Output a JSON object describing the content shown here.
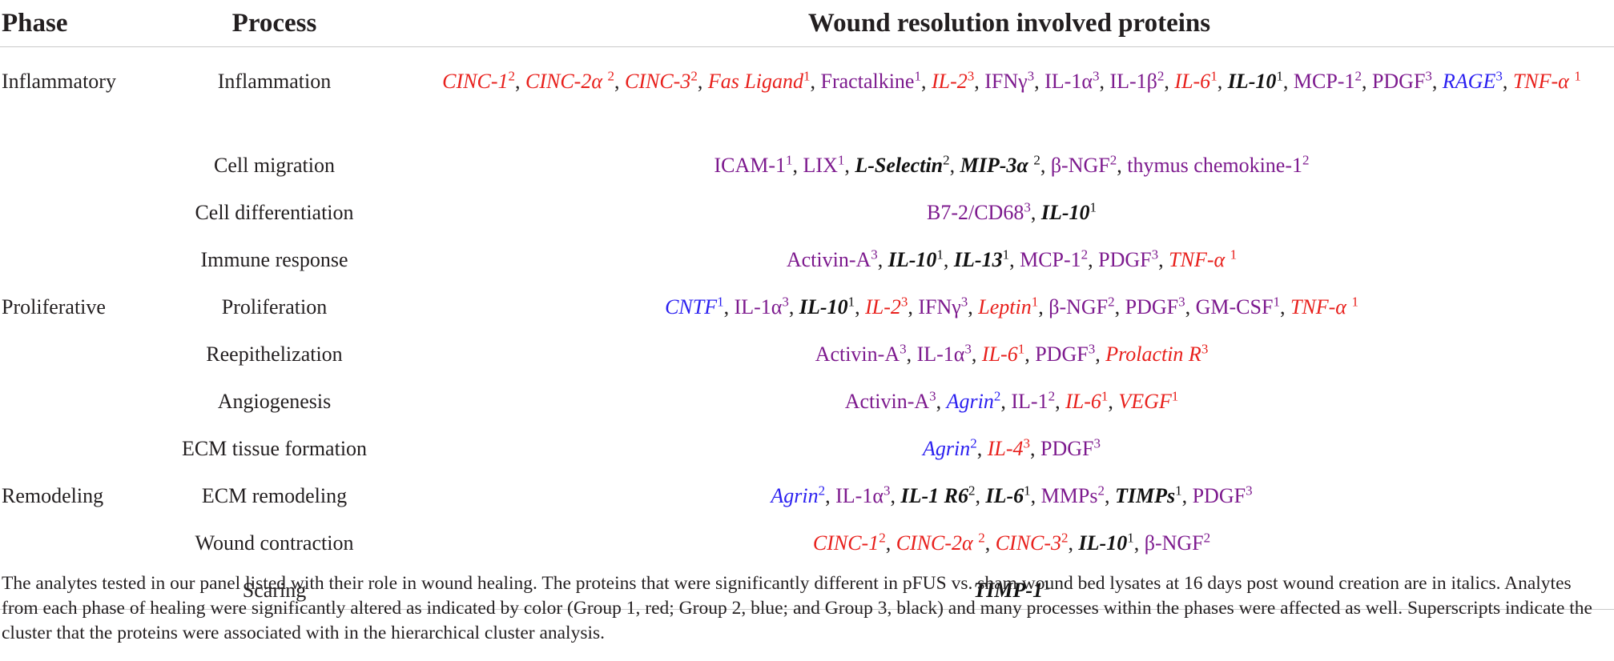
{
  "colors": {
    "group1": "#e8201c",
    "group2": "#2a1ff0",
    "group3": "#111111",
    "mixed": "#7d1a8e",
    "text": "#231f20"
  },
  "headers": {
    "phase": "Phase",
    "process": "Process",
    "proteins": "Wound resolution involved proteins"
  },
  "rows": [
    {
      "phase": "Inflammatory",
      "process": "Inflammation",
      "items": [
        {
          "t": "CINC-1",
          "s": "2",
          "c": "group1",
          "i": true
        },
        {
          "t": "CINC-2α ",
          "s": "2",
          "c": "group1",
          "i": true
        },
        {
          "t": "CINC-3",
          "s": "2",
          "c": "group1",
          "i": true
        },
        {
          "t": "Fas Ligand",
          "s": "1",
          "c": "group1",
          "i": true
        },
        {
          "t": "Fractalkine",
          "s": "1",
          "c": "mixed"
        },
        {
          "t": "IL-2",
          "s": "3",
          "c": "group1",
          "i": true
        },
        {
          "t": "IFNγ",
          "s": "3",
          "c": "mixed"
        },
        {
          "t": "IL-1α",
          "s": "3",
          "c": "mixed"
        },
        {
          "t": "IL-1β",
          "s": "2",
          "c": "mixed"
        },
        {
          "t": "IL-6",
          "s": "1",
          "c": "group1",
          "i": true
        },
        {
          "t": "IL-10",
          "s": "1",
          "c": "group3",
          "i": true,
          "b": true
        },
        {
          "t": "MCP-1",
          "s": "2",
          "c": "mixed"
        },
        {
          "t": "PDGF",
          "s": "3",
          "c": "mixed"
        },
        {
          "t": "RAGE",
          "s": "3",
          "c": "group2",
          "i": true
        },
        {
          "t": "TNF-α ",
          "s": "1",
          "c": "group1",
          "i": true
        }
      ]
    },
    {
      "phase": "",
      "process": "Cell migration",
      "items": [
        {
          "t": "ICAM-1",
          "s": "1",
          "c": "mixed"
        },
        {
          "t": "LIX",
          "s": "1",
          "c": "mixed"
        },
        {
          "t": "L-Selectin",
          "s": "2",
          "c": "group3",
          "i": true,
          "b": true
        },
        {
          "t": "MIP-3α ",
          "s": "2",
          "c": "group3",
          "i": true,
          "b": true
        },
        {
          "t": "β-NGF",
          "s": "2",
          "c": "mixed"
        },
        {
          "t": "thymus chemokine-1",
          "s": "2",
          "c": "mixed"
        }
      ]
    },
    {
      "phase": "",
      "process": "Cell differentiation",
      "items": [
        {
          "t": "B7-2/CD68",
          "s": "3",
          "c": "mixed"
        },
        {
          "t": "IL-10",
          "s": "1",
          "c": "group3",
          "i": true,
          "b": true
        }
      ]
    },
    {
      "phase": "",
      "process": "Immune response",
      "items": [
        {
          "t": "Activin-A",
          "s": "3",
          "c": "mixed"
        },
        {
          "t": "IL-10",
          "s": "1",
          "c": "group3",
          "i": true,
          "b": true
        },
        {
          "t": "IL-13",
          "s": "1",
          "c": "group3",
          "i": true,
          "b": true
        },
        {
          "t": "MCP-1",
          "s": "2",
          "c": "mixed"
        },
        {
          "t": "PDGF",
          "s": "3",
          "c": "mixed"
        },
        {
          "t": "TNF-α ",
          "s": "1",
          "c": "group1",
          "i": true
        }
      ]
    },
    {
      "phase": "Proliferative",
      "process": "Proliferation",
      "items": [
        {
          "t": "CNTF",
          "s": "1",
          "c": "group2",
          "i": true
        },
        {
          "t": "IL-1α",
          "s": "3",
          "c": "mixed"
        },
        {
          "t": "IL-10",
          "s": "1",
          "c": "group3",
          "i": true,
          "b": true
        },
        {
          "t": "IL-2",
          "s": "3",
          "c": "group1",
          "i": true
        },
        {
          "t": "IFNγ",
          "s": "3",
          "c": "mixed"
        },
        {
          "t": "Leptin",
          "s": "1",
          "c": "group1",
          "i": true
        },
        {
          "t": "β-NGF",
          "s": "2",
          "c": "mixed"
        },
        {
          "t": "PDGF",
          "s": "3",
          "c": "mixed"
        },
        {
          "t": "GM-CSF",
          "s": "1",
          "c": "mixed"
        },
        {
          "t": "TNF-α ",
          "s": "1",
          "c": "group1",
          "i": true
        }
      ]
    },
    {
      "phase": "",
      "process": "Reepithelization",
      "items": [
        {
          "t": "Activin-A",
          "s": "3",
          "c": "mixed"
        },
        {
          "t": "IL-1α",
          "s": "3",
          "c": "mixed"
        },
        {
          "t": "IL-6",
          "s": "1",
          "c": "group1",
          "i": true
        },
        {
          "t": "PDGF",
          "s": "3",
          "c": "mixed"
        },
        {
          "t": "Prolactin R",
          "s": "3",
          "c": "group1",
          "i": true
        }
      ]
    },
    {
      "phase": "",
      "process": "Angiogenesis",
      "items": [
        {
          "t": "Activin-A",
          "s": "3",
          "c": "mixed"
        },
        {
          "t": "Agrin",
          "s": "2",
          "c": "group2",
          "i": true
        },
        {
          "t": "IL-1",
          "s": "2",
          "c": "mixed"
        },
        {
          "t": "IL-6",
          "s": "1",
          "c": "group1",
          "i": true
        },
        {
          "t": "VEGF",
          "s": "1",
          "c": "group1",
          "i": true
        }
      ]
    },
    {
      "phase": "",
      "process": "ECM tissue formation",
      "items": [
        {
          "t": "Agrin",
          "s": "2",
          "c": "group2",
          "i": true
        },
        {
          "t": "IL-4",
          "s": "3",
          "c": "group1",
          "i": true
        },
        {
          "t": "PDGF",
          "s": "3",
          "c": "mixed"
        }
      ]
    },
    {
      "phase": "Remodeling",
      "process": "ECM remodeling",
      "items": [
        {
          "t": "Agrin",
          "s": "2",
          "c": "group2",
          "i": true
        },
        {
          "t": "IL-1α",
          "s": "3",
          "c": "mixed"
        },
        {
          "t": "IL-1 R6",
          "s": "2",
          "c": "group3",
          "i": true,
          "b": true
        },
        {
          "t": "IL-6",
          "s": "1",
          "c": "group3",
          "i": true,
          "b": true
        },
        {
          "t": "MMPs",
          "s": "2",
          "c": "mixed"
        },
        {
          "t": "TIMPs",
          "s": "1",
          "c": "group3",
          "i": true,
          "b": true
        },
        {
          "t": "PDGF",
          "s": "3",
          "c": "mixed"
        }
      ]
    },
    {
      "phase": "",
      "process": "Wound contraction",
      "items": [
        {
          "t": "CINC-1",
          "s": "2",
          "c": "group1",
          "i": true
        },
        {
          "t": "CINC-2α ",
          "s": "2",
          "c": "group1",
          "i": true
        },
        {
          "t": "CINC-3",
          "s": "2",
          "c": "group1",
          "i": true
        },
        {
          "t": "IL-10",
          "s": "1",
          "c": "group3",
          "i": true,
          "b": true
        },
        {
          "t": "β-NGF",
          "s": "2",
          "c": "mixed"
        }
      ]
    },
    {
      "phase": "",
      "process": "Scaring",
      "items": [
        {
          "t": "TIMP-1",
          "s": "1",
          "c": "group3",
          "i": true,
          "b": true
        }
      ]
    }
  ],
  "caption": "The analytes tested in our panel listed with their role in wound healing. The proteins that were significantly different in pFUS vs. sham wound bed lysates at 16 days post wound creation are in italics. Analytes from each phase of healing were significantly altered as indicated by color (Group 1, red; Group 2, blue; and Group 3, black) and many processes within the phases were affected as well. Superscripts indicate the cluster that the proteins were associated with in the hierarchical cluster analysis."
}
